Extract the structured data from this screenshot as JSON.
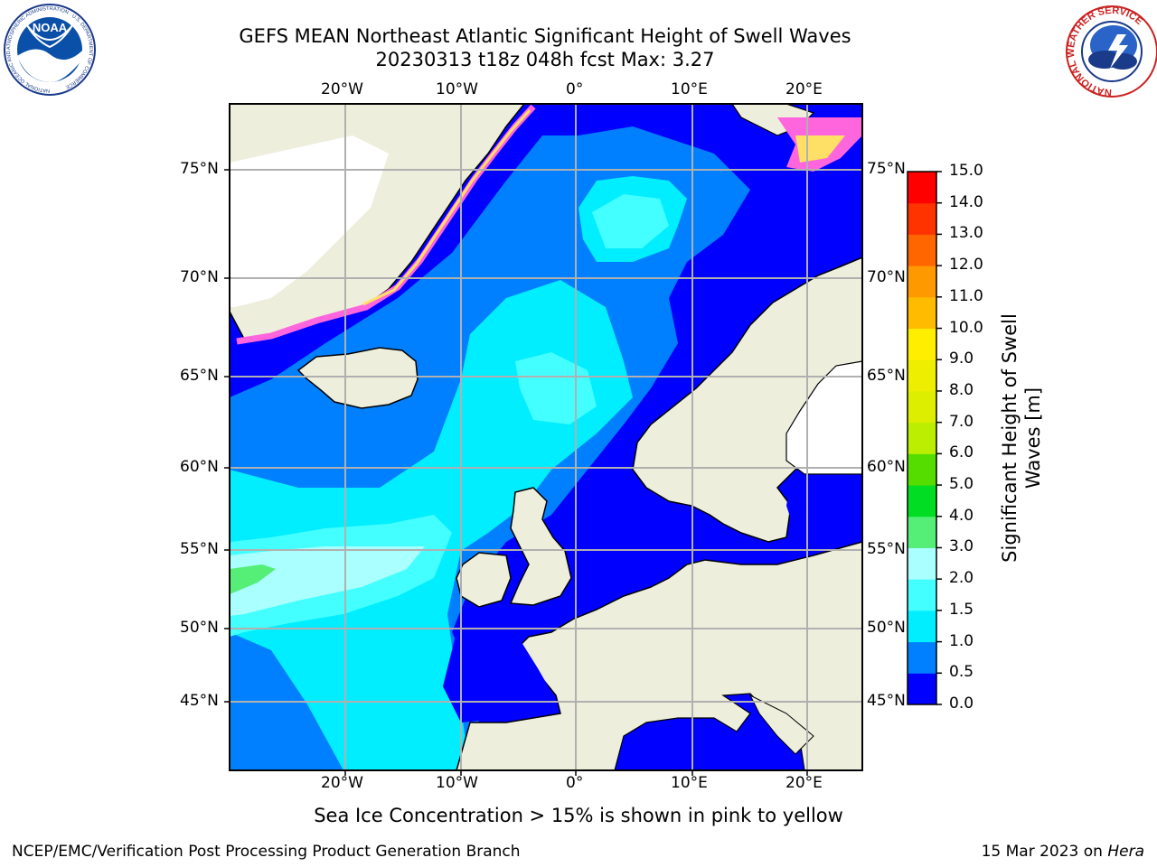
{
  "header": {
    "title_line1": "GEFS MEAN Northeast Atlantic Significant Height of Swell Waves",
    "title_line2": "20230313 t18z 048h fcst   Max: 3.27"
  },
  "logos": {
    "noaa_text": "NOAA",
    "noaa_ring_text": "NATIONAL OCEANIC AND ATMOSPHERIC ADMINISTRATION · U.S. DEPARTMENT OF COMMERCE",
    "nws_ring_text": "NATIONAL WEATHER SERVICE"
  },
  "map": {
    "lon_labels_top": [
      "20°W",
      "10°W",
      "0°",
      "10°E",
      "20°E"
    ],
    "lon_labels_bottom": [
      "20°W",
      "10°W",
      "0°",
      "10°E",
      "20°E"
    ],
    "lat_labels_left": [
      "75°N",
      "70°N",
      "65°N",
      "60°N",
      "55°N",
      "50°N",
      "45°N"
    ],
    "lat_labels_right": [
      "75°N",
      "70°N",
      "65°N",
      "60°N",
      "55°N",
      "50°N",
      "45°N"
    ],
    "colors": {
      "land": "#eeeedd",
      "ice_pink": "#ff66dd",
      "ice_yellow": "#ffe066",
      "grid": "#b0b0b0"
    }
  },
  "colorbar": {
    "label": "Significant Height of Swell Waves [m]",
    "ticks": [
      "15.0",
      "14.0",
      "13.0",
      "12.0",
      "11.0",
      "10.0",
      "9.0",
      "8.0",
      "7.0",
      "6.0",
      "5.0",
      "4.0",
      "3.0",
      "2.0",
      "1.5",
      "1.0",
      "0.5",
      "0.0"
    ],
    "bands": [
      {
        "from": 0.0,
        "to": 0.5,
        "color": "#0000ff"
      },
      {
        "from": 0.5,
        "to": 1.0,
        "color": "#0080ff"
      },
      {
        "from": 1.0,
        "to": 1.5,
        "color": "#00eeff"
      },
      {
        "from": 1.5,
        "to": 2.0,
        "color": "#44ffff"
      },
      {
        "from": 2.0,
        "to": 3.0,
        "color": "#aaffff"
      },
      {
        "from": 3.0,
        "to": 4.0,
        "color": "#55ee77"
      },
      {
        "from": 4.0,
        "to": 5.0,
        "color": "#00dd22"
      },
      {
        "from": 5.0,
        "to": 6.0,
        "color": "#55dd00"
      },
      {
        "from": 6.0,
        "to": 7.0,
        "color": "#bbee00"
      },
      {
        "from": 7.0,
        "to": 8.0,
        "color": "#ddee00"
      },
      {
        "from": 8.0,
        "to": 9.0,
        "color": "#eeee00"
      },
      {
        "from": 9.0,
        "to": 10.0,
        "color": "#ffee00"
      },
      {
        "from": 10.0,
        "to": 11.0,
        "color": "#ffbb00"
      },
      {
        "from": 11.0,
        "to": 12.0,
        "color": "#ff9900"
      },
      {
        "from": 12.0,
        "to": 13.0,
        "color": "#ff6600"
      },
      {
        "from": 13.0,
        "to": 14.0,
        "color": "#ff3300"
      },
      {
        "from": 14.0,
        "to": 15.0,
        "color": "#ff0000"
      }
    ]
  },
  "footer": {
    "caption": "Sea Ice Concentration > 15% is shown in pink to yellow",
    "left": "NCEP/EMC/Verification Post Processing Product Generation Branch",
    "right_prefix": "15 Mar 2023 on ",
    "right_host": "Hera"
  }
}
